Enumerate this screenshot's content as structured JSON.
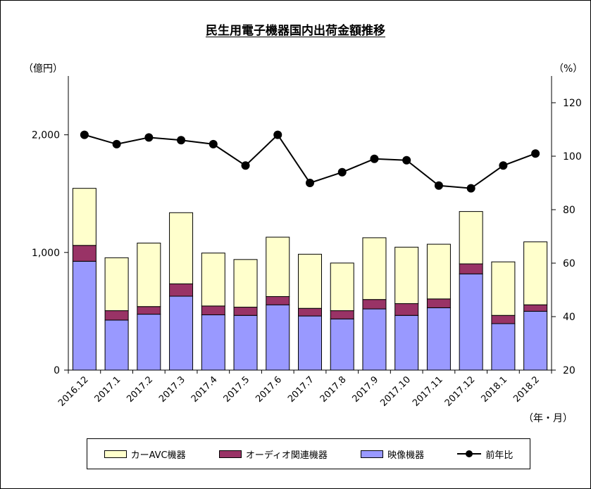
{
  "chart_data": {
    "type": "bar",
    "title": "民生用電子機器国内出荷金額推移",
    "left_axis_unit": "（億円）",
    "right_axis_unit": "（%）",
    "x_unit": "（年・月）",
    "categories": [
      "2016.12",
      "2017.1",
      "2017.2",
      "2017.3",
      "2017.4",
      "2017.5",
      "2017.6",
      "2017.7",
      "2017.8",
      "2017.9",
      "2017.10",
      "2017.11",
      "2017.12",
      "2018.1",
      "2018.2"
    ],
    "stacked_series": [
      {
        "name": "映像機器",
        "color": "#9999ff",
        "values": [
          925,
          425,
          475,
          628,
          470,
          465,
          555,
          460,
          435,
          520,
          465,
          530,
          818,
          395,
          500
        ]
      },
      {
        "name": "オーディオ関連機器",
        "color": "#993366",
        "values": [
          135,
          80,
          65,
          105,
          75,
          70,
          70,
          65,
          70,
          80,
          100,
          75,
          85,
          70,
          55
        ]
      },
      {
        "name": "カーAVC機器",
        "color": "#ffffcc",
        "values": [
          485,
          450,
          540,
          605,
          450,
          405,
          505,
          460,
          405,
          525,
          480,
          465,
          445,
          455,
          535
        ]
      }
    ],
    "line_series": {
      "name": "前年比",
      "axis": "right",
      "values": [
        108,
        104.5,
        107,
        106,
        104.5,
        96.5,
        108,
        90,
        94,
        99,
        98.5,
        89,
        88,
        96.5,
        101
      ]
    },
    "left_axis": {
      "min": 0,
      "max": 2500,
      "ticks": [
        0,
        1000,
        2000
      ],
      "tick_labels": [
        "0",
        "1,000",
        "2,000"
      ]
    },
    "right_axis": {
      "min": 20,
      "max": 130,
      "ticks": [
        20,
        40,
        60,
        80,
        100,
        120
      ],
      "tick_labels": [
        "20",
        "40",
        "60",
        "80",
        "100",
        "120"
      ]
    },
    "grid": false,
    "legend_position": "bottom"
  },
  "legend": {
    "items": [
      {
        "label": "カーAVC機器"
      },
      {
        "label": "オーディオ関連機器"
      },
      {
        "label": "映像機器"
      },
      {
        "label": "前年比"
      }
    ]
  }
}
